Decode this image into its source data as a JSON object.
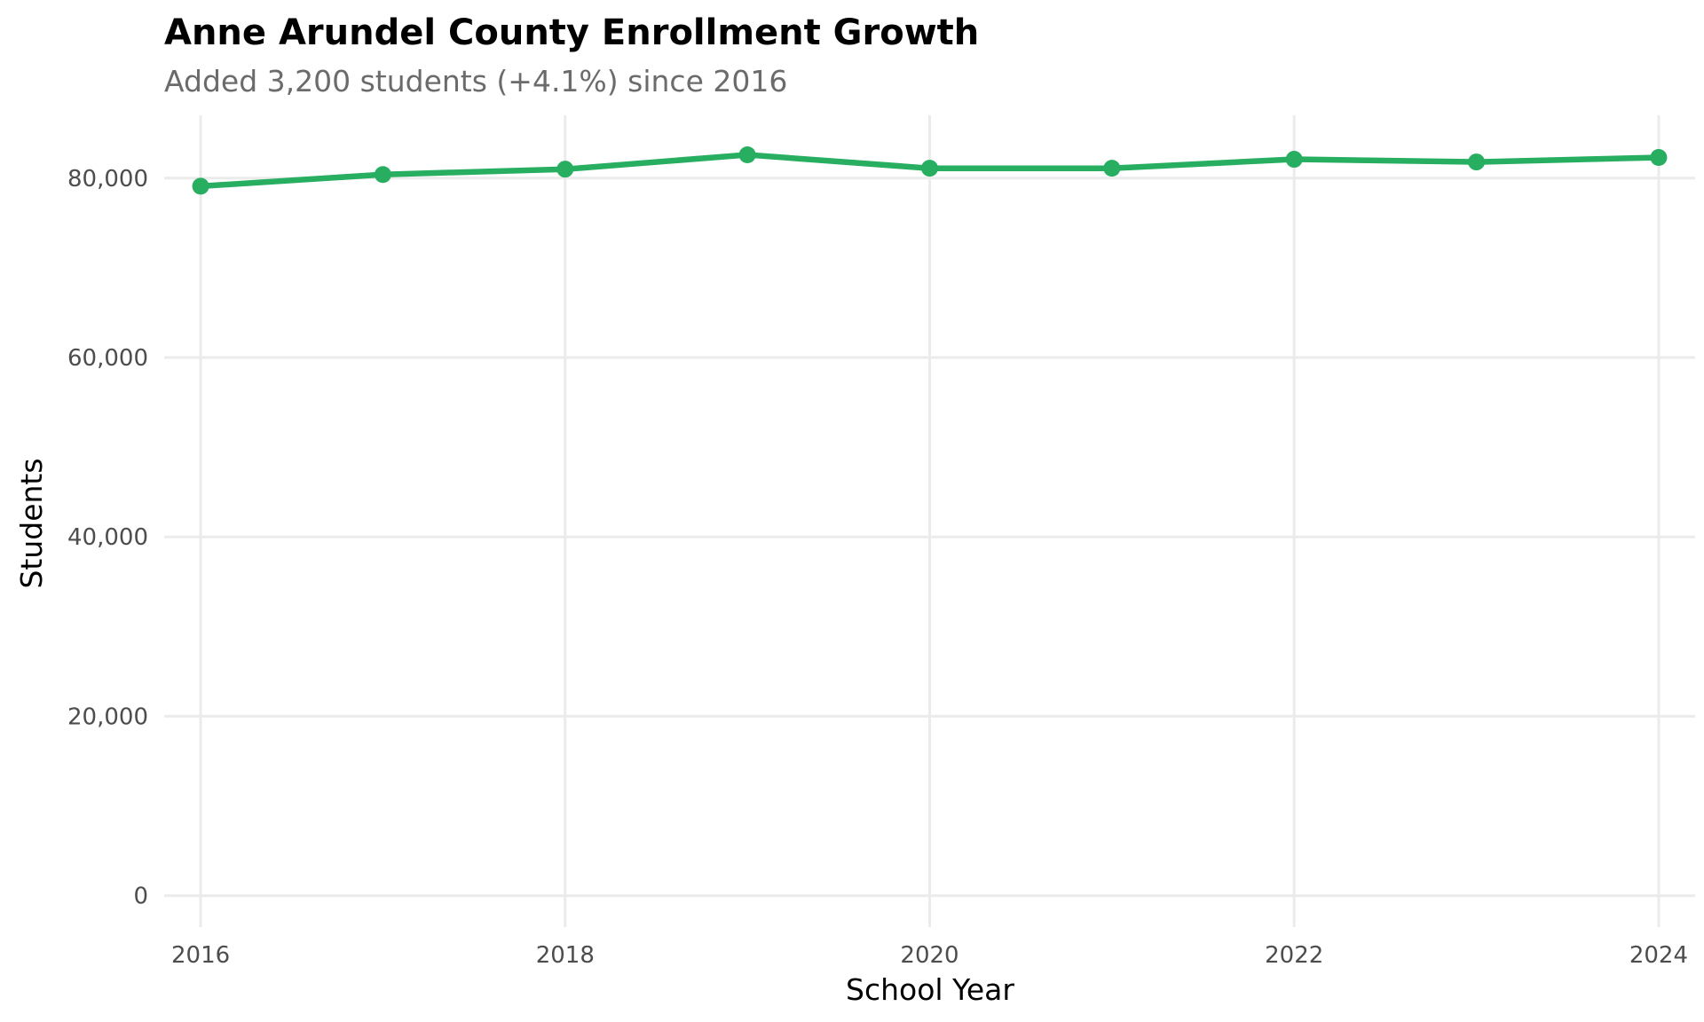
{
  "chart_data": {
    "type": "line",
    "title": "Anne Arundel County Enrollment Growth",
    "subtitle": "Added 3,200 students (+4.1%) since 2016",
    "xlabel": "School Year",
    "ylabel": "Students",
    "x": [
      2016,
      2017,
      2018,
      2019,
      2020,
      2021,
      2022,
      2023,
      2024
    ],
    "series": [
      {
        "values": [
          79100,
          80400,
          81000,
          82600,
          81100,
          81100,
          82100,
          81800,
          82300
        ],
        "color": "#27ae60"
      }
    ],
    "xlim": [
      2015.8,
      2024.2
    ],
    "ylim": [
      -3500,
      87000
    ],
    "x_ticks": [
      2016,
      2018,
      2020,
      2022,
      2024
    ],
    "x_tick_labels": [
      "2016",
      "2018",
      "2020",
      "2022",
      "2024"
    ],
    "y_ticks": [
      0,
      20000,
      40000,
      60000,
      80000
    ],
    "y_tick_labels": [
      "0",
      "20,000",
      "40,000",
      "60,000",
      "80,000"
    ],
    "grid": true,
    "legend": "none"
  }
}
